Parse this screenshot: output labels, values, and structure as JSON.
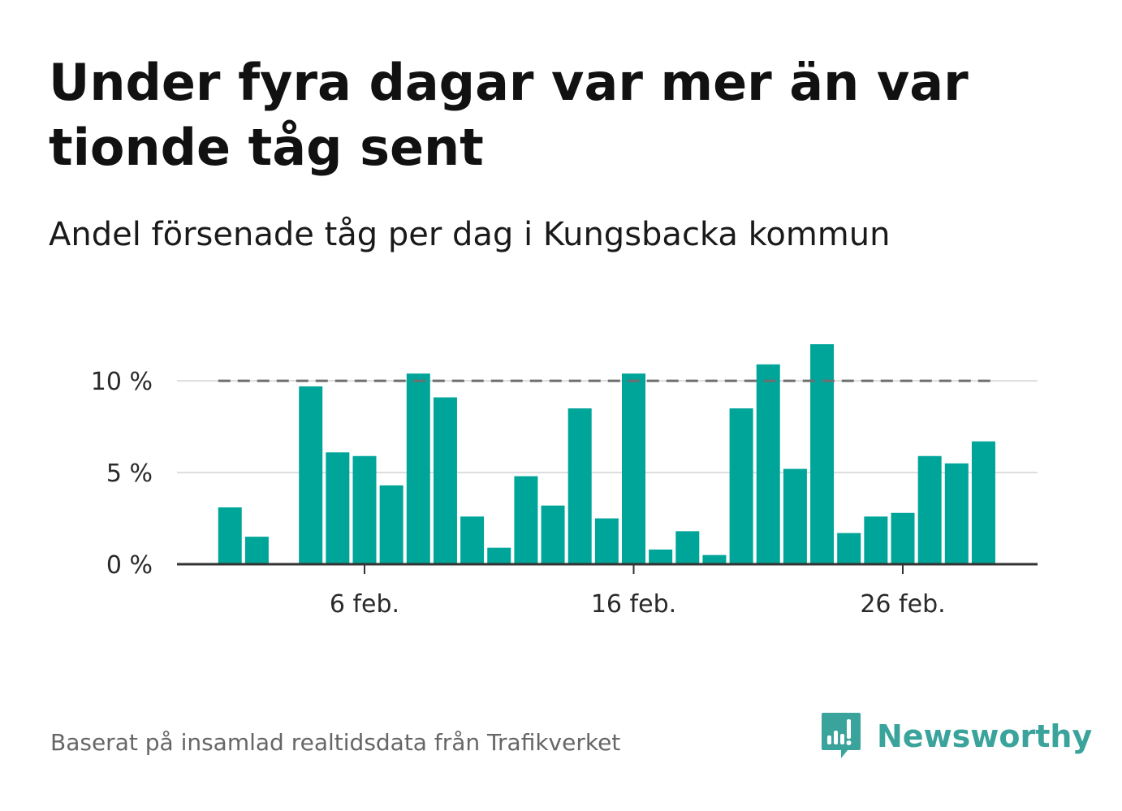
{
  "title": "Under fyra dagar var mer än var tionde tåg sent",
  "subtitle": "Andel försenade tåg per dag i Kungsbacka kommun",
  "footer": "Baserat på insamlad realtidsdata från Trafikverket",
  "brand": {
    "name": "Newsworthy",
    "icon": "newsworthy-logo-icon",
    "color": "#3aa39b"
  },
  "colors": {
    "bar": "#00a59a",
    "reference_line": "#6e6e6e",
    "grid": "#dddddd",
    "axis": "#333333"
  },
  "chart_data": {
    "type": "bar",
    "title": "Andel försenade tåg per dag i Kungsbacka kommun",
    "xlabel": "",
    "ylabel": "",
    "x_unit": "day of February",
    "x": [
      1,
      2,
      4,
      5,
      6,
      7,
      8,
      9,
      10,
      11,
      12,
      13,
      14,
      15,
      16,
      17,
      18,
      19,
      20,
      21,
      22,
      23,
      24,
      25,
      26,
      27,
      28,
      29
    ],
    "values": [
      3.1,
      1.5,
      9.7,
      6.1,
      5.9,
      4.3,
      10.4,
      9.1,
      2.6,
      0.9,
      4.8,
      3.2,
      8.5,
      2.5,
      10.4,
      0.8,
      1.8,
      0.5,
      8.5,
      10.9,
      5.2,
      12.0,
      1.7,
      2.6,
      2.8,
      5.9,
      5.5,
      6.7
    ],
    "unit": "%",
    "xlim": [
      0,
      32
    ],
    "ylim": [
      0,
      12
    ],
    "y_ticks": [
      0,
      5,
      10
    ],
    "y_tick_labels": [
      "0 %",
      "5 %",
      "10 %"
    ],
    "x_ticks": [
      6,
      16,
      26
    ],
    "x_tick_labels": [
      "6 feb.",
      "16 feb.",
      "26 feb."
    ],
    "reference_line": {
      "value": 10,
      "from_day": 1,
      "to_day": 29,
      "style": "dashed"
    },
    "grid": true,
    "legend": "none"
  }
}
